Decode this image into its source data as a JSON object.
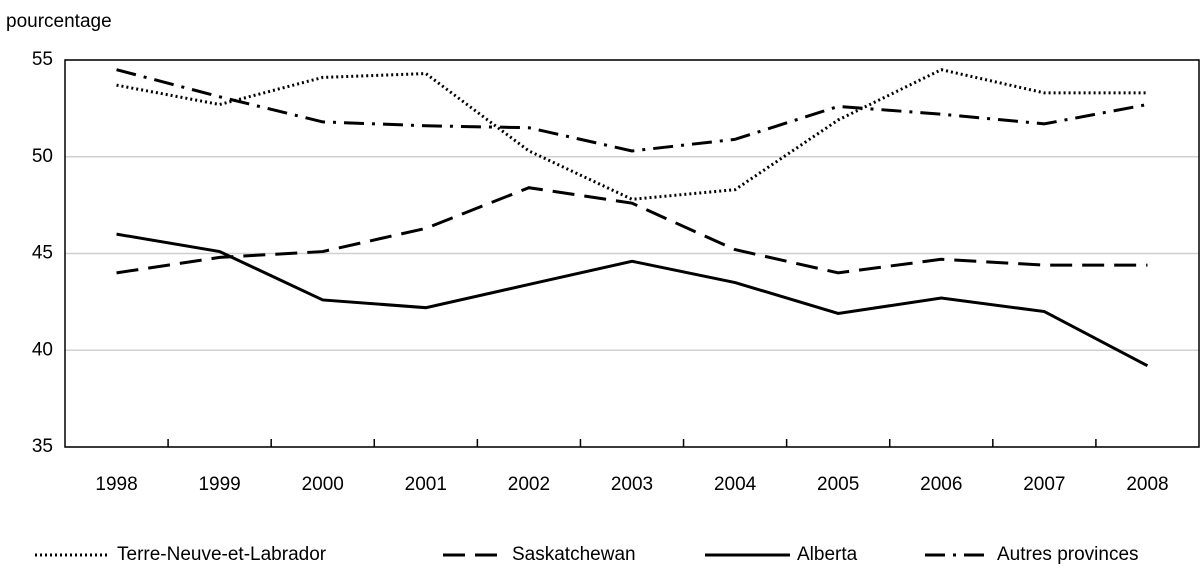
{
  "chart_data": {
    "type": "line",
    "y_axis_label": "pourcentage",
    "categories": [
      "1998",
      "1999",
      "2000",
      "2001",
      "2002",
      "2003",
      "2004",
      "2005",
      "2006",
      "2007",
      "2008"
    ],
    "ylim": [
      35,
      55
    ],
    "yticks": [
      35,
      40,
      45,
      50,
      55
    ],
    "grid": true,
    "legend": "bottom",
    "series": [
      {
        "name": "Terre-Neuve-et-Labrador",
        "color": "#000000",
        "dash": "dotted",
        "values": [
          53.7,
          52.7,
          54.1,
          54.3,
          50.3,
          47.8,
          48.3,
          51.9,
          54.5,
          53.3,
          53.3
        ]
      },
      {
        "name": "Saskatchewan",
        "color": "#000000",
        "dash": "dashed",
        "values": [
          44.0,
          44.8,
          45.1,
          46.3,
          48.4,
          47.6,
          45.2,
          44.0,
          44.7,
          44.4,
          44.4
        ]
      },
      {
        "name": "Alberta",
        "color": "#000000",
        "dash": "solid",
        "values": [
          46.0,
          45.1,
          42.6,
          42.2,
          43.4,
          44.6,
          43.5,
          41.9,
          42.7,
          42.0,
          39.2
        ]
      },
      {
        "name": "Autres provinces",
        "color": "#000000",
        "dash": "dashdot",
        "values": [
          54.5,
          53.1,
          51.8,
          51.6,
          51.5,
          50.3,
          50.9,
          52.6,
          52.2,
          51.7,
          52.7
        ]
      }
    ]
  }
}
